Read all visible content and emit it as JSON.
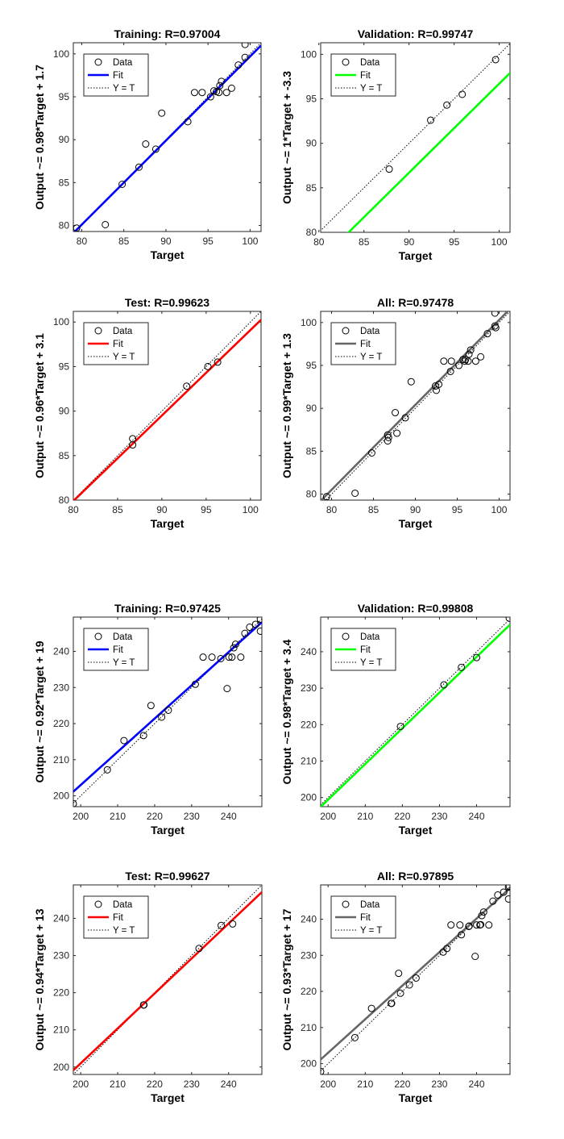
{
  "chart_data": [
    {
      "type": "scatter",
      "title": "Training: R=0.97004",
      "xlabel": "Target",
      "ylabel": "Output ~= 0.98*Target + 1.7",
      "xlim": [
        79,
        101.3
      ],
      "ylim": [
        79.3,
        101.3
      ],
      "xticks": [
        80,
        85,
        90,
        95,
        100
      ],
      "yticks": [
        80,
        85,
        90,
        95,
        100
      ],
      "fit": {
        "slope": 0.98,
        "intercept": 1.7,
        "color": "#0000ff"
      },
      "legend": {
        "data": "Data",
        "fit": "Fit",
        "yt": "Y = T",
        "position": "top-left"
      },
      "points": [
        [
          79.4,
          79.7
        ],
        [
          82.8,
          80.1
        ],
        [
          84.8,
          84.8
        ],
        [
          86.8,
          86.8
        ],
        [
          87.6,
          89.5
        ],
        [
          88.8,
          88.9
        ],
        [
          89.5,
          93.1
        ],
        [
          92.6,
          92.1
        ],
        [
          93.4,
          95.5
        ],
        [
          94.3,
          95.5
        ],
        [
          95.3,
          95.0
        ],
        [
          95.7,
          95.7
        ],
        [
          96.0,
          95.6
        ],
        [
          96.4,
          96.3
        ],
        [
          96.6,
          96.8
        ],
        [
          96.3,
          95.5
        ],
        [
          97.2,
          95.5
        ],
        [
          97.8,
          96.0
        ],
        [
          98.6,
          98.7
        ],
        [
          99.4,
          99.6
        ],
        [
          99.4,
          101.1
        ]
      ]
    },
    {
      "type": "scatter",
      "title": "Validation: R=0.99747",
      "xlabel": "Target",
      "ylabel": "Output ~= 1*Target + -3.3",
      "xlim": [
        80.2,
        101.2
      ],
      "ylim": [
        80,
        101.3
      ],
      "xticks": [
        80,
        85,
        90,
        95,
        100
      ],
      "yticks": [
        80,
        85,
        90,
        95,
        100
      ],
      "fit": {
        "slope": 1.0,
        "intercept": -3.3,
        "color": "#00ff00"
      },
      "legend": {
        "data": "Data",
        "fit": "Fit",
        "yt": "Y = T",
        "position": "top-left"
      },
      "points": [
        [
          87.8,
          87.1
        ],
        [
          92.4,
          92.6
        ],
        [
          94.2,
          94.3
        ],
        [
          95.9,
          95.5
        ],
        [
          99.6,
          99.4
        ]
      ]
    },
    {
      "type": "scatter",
      "title": "Test: R=0.99623",
      "xlabel": "Target",
      "ylabel": "Output ~= 0.96*Target + 3.1",
      "xlim": [
        80,
        101.2
      ],
      "ylim": [
        80,
        101.2
      ],
      "xticks": [
        80,
        85,
        90,
        95,
        100
      ],
      "yticks": [
        80,
        85,
        90,
        95,
        100
      ],
      "fit": {
        "slope": 0.96,
        "intercept": 3.1,
        "color": "#ff0000"
      },
      "legend": {
        "data": "Data",
        "fit": "Fit",
        "yt": "Y = T",
        "position": "top-left"
      },
      "points": [
        [
          86.7,
          86.9
        ],
        [
          86.7,
          86.2
        ],
        [
          92.8,
          92.8
        ],
        [
          95.2,
          95.0
        ],
        [
          96.3,
          95.5
        ]
      ]
    },
    {
      "type": "scatter",
      "title": "All: R=0.97478",
      "xlabel": "Target",
      "ylabel": "Output ~= 0.99*Target + 1.3",
      "xlim": [
        78.7,
        101.3
      ],
      "ylim": [
        79.3,
        101.3
      ],
      "xticks": [
        80,
        85,
        90,
        95,
        100
      ],
      "yticks": [
        80,
        85,
        90,
        95,
        100
      ],
      "fit": {
        "slope": 0.99,
        "intercept": 1.3,
        "color": "#666666"
      },
      "legend": {
        "data": "Data",
        "fit": "Fit",
        "yt": "Y = T",
        "position": "top-left"
      },
      "points": [
        [
          79.4,
          79.7
        ],
        [
          82.8,
          80.1
        ],
        [
          84.8,
          84.8
        ],
        [
          86.7,
          86.9
        ],
        [
          86.7,
          86.2
        ],
        [
          86.8,
          86.6
        ],
        [
          87.6,
          89.5
        ],
        [
          87.8,
          87.1
        ],
        [
          88.8,
          88.9
        ],
        [
          89.5,
          93.1
        ],
        [
          92.4,
          92.6
        ],
        [
          92.5,
          92.1
        ],
        [
          92.8,
          92.8
        ],
        [
          93.4,
          95.5
        ],
        [
          94.2,
          94.3
        ],
        [
          94.3,
          95.5
        ],
        [
          95.2,
          95.0
        ],
        [
          95.7,
          95.7
        ],
        [
          95.9,
          95.5
        ],
        [
          96.0,
          95.7
        ],
        [
          96.3,
          95.5
        ],
        [
          96.4,
          96.3
        ],
        [
          96.6,
          96.8
        ],
        [
          97.2,
          95.5
        ],
        [
          97.8,
          96.0
        ],
        [
          98.6,
          98.7
        ],
        [
          99.5,
          99.6
        ],
        [
          99.6,
          99.4
        ],
        [
          99.5,
          101.1
        ]
      ]
    },
    {
      "type": "scatter",
      "title": "Training: R=0.97425",
      "xlabel": "Target",
      "ylabel": "Output ~= 0.92*Target + 19",
      "xlim": [
        198,
        249
      ],
      "ylim": [
        197,
        249.5
      ],
      "xticks": [
        200,
        210,
        220,
        230,
        240
      ],
      "yticks": [
        200,
        210,
        220,
        230,
        240
      ],
      "fit": {
        "slope": 0.92,
        "intercept": 19,
        "color": "#0000ff"
      },
      "legend": {
        "data": "Data",
        "fit": "Fit",
        "yt": "Y = T",
        "position": "top-left"
      },
      "points": [
        [
          198.0,
          197.8
        ],
        [
          207.2,
          207.2
        ],
        [
          211.7,
          215.3
        ],
        [
          217.0,
          216.7
        ],
        [
          219.0,
          225.0
        ],
        [
          221.9,
          221.8
        ],
        [
          223.7,
          223.7
        ],
        [
          231.0,
          230.9
        ],
        [
          233.1,
          238.4
        ],
        [
          235.5,
          238.4
        ],
        [
          237.9,
          238.0
        ],
        [
          239.6,
          229.7
        ],
        [
          240.1,
          238.4
        ],
        [
          240.9,
          238.4
        ],
        [
          241.4,
          241.0
        ],
        [
          241.9,
          242.0
        ],
        [
          243.3,
          238.4
        ],
        [
          244.4,
          245.0
        ],
        [
          245.7,
          246.7
        ],
        [
          247.3,
          247.5
        ],
        [
          248.6,
          248.9
        ],
        [
          248.6,
          245.6
        ]
      ]
    },
    {
      "type": "scatter",
      "title": "Validation: R=0.99808",
      "xlabel": "Target",
      "ylabel": "Output ~= 0.98*Target + 3.4",
      "xlim": [
        198,
        249
      ],
      "ylim": [
        197.5,
        249.5
      ],
      "xticks": [
        200,
        210,
        220,
        230,
        240
      ],
      "yticks": [
        200,
        210,
        220,
        230,
        240
      ],
      "fit": {
        "slope": 0.98,
        "intercept": 3.4,
        "color": "#00ff00"
      },
      "legend": {
        "data": "Data",
        "fit": "Fit",
        "yt": "Y = T",
        "position": "top-left"
      },
      "points": [
        [
          219.5,
          219.5
        ],
        [
          231.2,
          230.9
        ],
        [
          235.9,
          235.7
        ],
        [
          240.0,
          238.4
        ],
        [
          248.8,
          249.2
        ]
      ]
    },
    {
      "type": "scatter",
      "title": "Test: R=0.99627",
      "xlabel": "Target",
      "ylabel": "Output ~= 0.94*Target + 13",
      "xlim": [
        198,
        249
      ],
      "ylim": [
        198,
        249
      ],
      "xticks": [
        200,
        210,
        220,
        230,
        240
      ],
      "yticks": [
        200,
        210,
        220,
        230,
        240
      ],
      "fit": {
        "slope": 0.94,
        "intercept": 13,
        "color": "#ff0000"
      },
      "legend": {
        "data": "Data",
        "fit": "Fit",
        "yt": "Y = T",
        "position": "top-left"
      },
      "points": [
        [
          217.0,
          216.7
        ],
        [
          217.1,
          216.7
        ],
        [
          232.0,
          231.9
        ],
        [
          238.0,
          238.1
        ],
        [
          241.1,
          238.5
        ]
      ]
    },
    {
      "type": "scatter",
      "title": "All: R=0.97895",
      "xlabel": "Target",
      "ylabel": "Output ~= 0.93*Target + 17",
      "xlim": [
        198,
        249
      ],
      "ylim": [
        197,
        249.5
      ],
      "xticks": [
        200,
        210,
        220,
        230,
        240
      ],
      "yticks": [
        200,
        210,
        220,
        230,
        240
      ],
      "fit": {
        "slope": 0.93,
        "intercept": 17,
        "color": "#666666"
      },
      "legend": {
        "data": "Data",
        "fit": "Fit",
        "yt": "Y = T",
        "position": "top-left"
      },
      "points": [
        [
          198.0,
          197.8
        ],
        [
          207.2,
          207.2
        ],
        [
          211.7,
          215.3
        ],
        [
          217.0,
          216.7
        ],
        [
          217.1,
          216.7
        ],
        [
          219.0,
          225.0
        ],
        [
          219.5,
          219.5
        ],
        [
          221.9,
          221.8
        ],
        [
          223.7,
          223.7
        ],
        [
          231.0,
          230.9
        ],
        [
          232.0,
          231.9
        ],
        [
          233.1,
          238.4
        ],
        [
          235.5,
          238.4
        ],
        [
          235.9,
          235.7
        ],
        [
          237.9,
          238.0
        ],
        [
          238.0,
          238.1
        ],
        [
          239.6,
          229.7
        ],
        [
          240.0,
          238.4
        ],
        [
          240.9,
          238.4
        ],
        [
          241.1,
          238.5
        ],
        [
          241.4,
          241.0
        ],
        [
          241.9,
          242.0
        ],
        [
          243.3,
          238.4
        ],
        [
          244.4,
          245.0
        ],
        [
          245.7,
          246.7
        ],
        [
          247.3,
          247.5
        ],
        [
          248.6,
          248.9
        ],
        [
          248.6,
          245.6
        ],
        [
          248.8,
          249.2
        ]
      ]
    }
  ]
}
